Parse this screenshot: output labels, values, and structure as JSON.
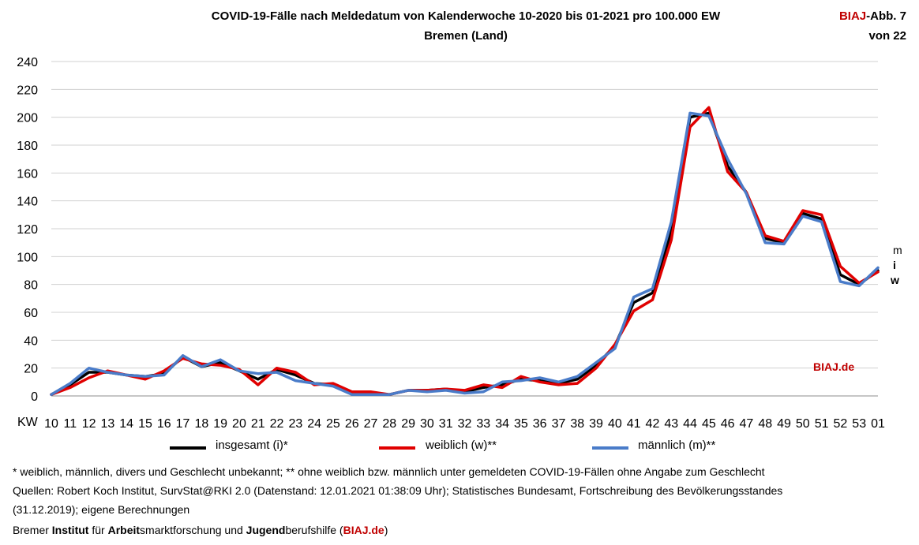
{
  "header": {
    "title_line1": "COVID-19-Fälle nach Meldedatum von Kalenderwoche 10-2020 bis 01-2021 pro 100.000 EW",
    "title_line2": "Bremen (Land)",
    "abb_brand": "BIAJ",
    "abb_rest": "-Abb. 7",
    "abb_line2": "von 22"
  },
  "chart_watermark": "BIAJ.de",
  "end_labels": {
    "m": "m",
    "i": "i",
    "w": "w"
  },
  "legend": [
    {
      "label": "insgesamt (i)*",
      "color": "#000000"
    },
    {
      "label": "weiblich (w)**",
      "color": "#e00000"
    },
    {
      "label": "männlich (m)**",
      "color": "#4a7cc9"
    }
  ],
  "footnotes": {
    "line1": "* weiblich, männlich, divers und Geschlecht unbekannt; ** ohne weiblich bzw. männlich unter gemeldeten COVID-19-Fällen ohne Angabe zum Geschlecht",
    "line2": "Quellen: Robert Koch Institut, SurvStat@RKI 2.0 (Datenstand: 12.01.2021 01:38:09 Uhr); Statistisches Bundesamt, Fortschreibung des Bevölkerungsstandes",
    "line3": "(31.12.2019); eigene Berechnungen",
    "line4_parts": [
      "Bremer ",
      "Institut",
      " für ",
      "Arbeit",
      "smarktforschung und ",
      "Jugend",
      "berufshilfe (",
      "BIAJ.de",
      ")"
    ]
  },
  "chart_data": {
    "type": "line",
    "xlabel": "KW",
    "categories": [
      "10",
      "11",
      "12",
      "13",
      "14",
      "15",
      "16",
      "17",
      "18",
      "19",
      "20",
      "21",
      "22",
      "23",
      "24",
      "25",
      "26",
      "27",
      "28",
      "29",
      "30",
      "31",
      "32",
      "33",
      "34",
      "35",
      "36",
      "37",
      "38",
      "39",
      "40",
      "41",
      "42",
      "43",
      "44",
      "45",
      "46",
      "47",
      "48",
      "49",
      "50",
      "51",
      "52",
      "53",
      "01"
    ],
    "ylim": [
      0,
      240
    ],
    "yticks": [
      0,
      20,
      40,
      60,
      80,
      100,
      120,
      140,
      160,
      180,
      200,
      220,
      240
    ],
    "grid": true,
    "legend_position": "bottom",
    "series": [
      {
        "name": "insgesamt (i)*",
        "color": "#000000",
        "values": [
          1,
          8,
          17,
          17,
          15,
          14,
          16,
          28,
          21,
          24,
          18,
          12,
          19,
          15,
          9,
          8,
          2,
          2,
          1,
          4,
          4,
          5,
          3,
          6,
          8,
          12,
          11,
          9,
          12,
          22,
          36,
          67,
          74,
          118,
          200,
          203,
          165,
          146,
          113,
          110,
          131,
          127,
          87,
          80,
          90
        ]
      },
      {
        "name": "weiblich (w)**",
        "color": "#e00000",
        "values": [
          1,
          6,
          13,
          18,
          15,
          12,
          18,
          27,
          23,
          22,
          19,
          8,
          20,
          17,
          8,
          9,
          3,
          3,
          1,
          4,
          4,
          5,
          4,
          8,
          6,
          14,
          10,
          8,
          9,
          20,
          37,
          61,
          69,
          112,
          193,
          207,
          161,
          146,
          115,
          111,
          133,
          130,
          93,
          81,
          89
        ]
      },
      {
        "name": "männlich (m)**",
        "color": "#4a7cc9",
        "values": [
          1,
          9,
          20,
          17,
          15,
          14,
          15,
          29,
          21,
          26,
          18,
          16,
          17,
          11,
          9,
          7,
          1,
          1,
          1,
          4,
          3,
          4,
          2,
          3,
          10,
          11,
          13,
          10,
          14,
          24,
          34,
          71,
          77,
          125,
          203,
          201,
          170,
          145,
          110,
          109,
          129,
          125,
          82,
          79,
          92
        ]
      }
    ]
  }
}
